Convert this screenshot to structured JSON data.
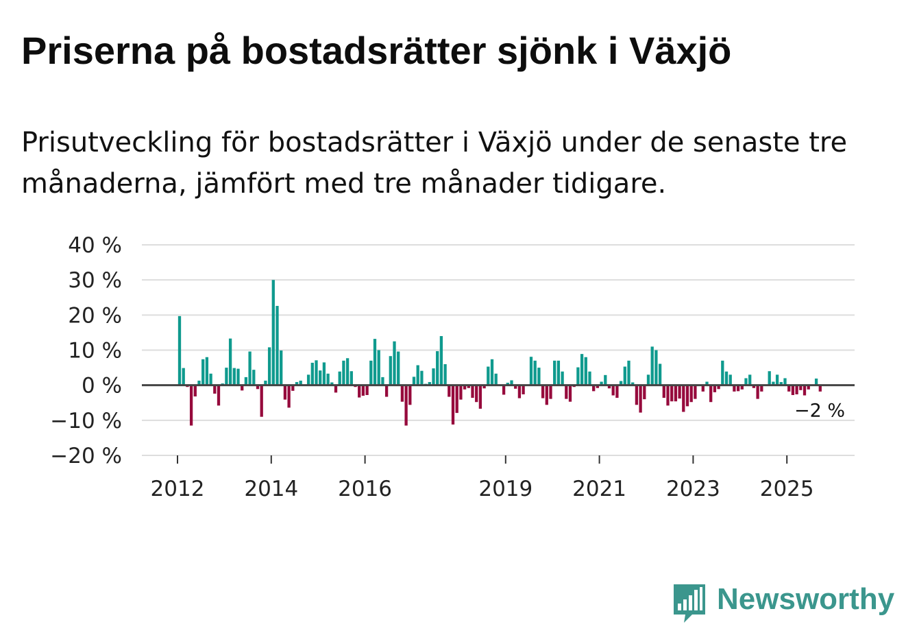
{
  "header": {
    "title": "Priserna på bostadsrätter sjönk i Växjö",
    "subtitle": "Prisutveckling för bostadsrätter i Växjö under de senaste tre månaderna, jämfört med tre månader tidigare."
  },
  "logo": {
    "text": "Newsworthy",
    "icon": "bar-chart-speech-icon",
    "color": "#3b968d"
  },
  "chart_data": {
    "type": "bar",
    "title": "Priserna på bostadsrätter sjönk i Växjö",
    "xlabel": "",
    "ylabel": "",
    "ylim": [
      -20,
      40
    ],
    "grid": true,
    "positive_color": "#0f9a8e",
    "negative_color": "#960a3c",
    "y_ticks": [
      {
        "value": 40,
        "label": "40 %"
      },
      {
        "value": 30,
        "label": "30 %"
      },
      {
        "value": 20,
        "label": "20 %"
      },
      {
        "value": 10,
        "label": "10 %"
      },
      {
        "value": 0,
        "label": "0 %"
      },
      {
        "value": -10,
        "label": "−10 %"
      },
      {
        "value": -20,
        "label": "−20 %"
      }
    ],
    "x_ticks": [
      {
        "index": 0,
        "label": "2012"
      },
      {
        "index": 24,
        "label": "2014"
      },
      {
        "index": 48,
        "label": "2016"
      },
      {
        "index": 84,
        "label": "2019"
      },
      {
        "index": 108,
        "label": "2021"
      },
      {
        "index": 132,
        "label": "2023"
      },
      {
        "index": 156,
        "label": "2025"
      }
    ],
    "start": "2012-01",
    "values": [
      19.7,
      4.9,
      -0.5,
      -11.5,
      -3.2,
      1.3,
      7.4,
      8.0,
      3.3,
      -2.4,
      -5.8,
      0.5,
      5.0,
      13.3,
      4.9,
      4.7,
      -1.5,
      2.3,
      9.6,
      4.4,
      -1.1,
      -9.0,
      1.3,
      10.8,
      30.0,
      22.6,
      9.9,
      -4.1,
      -6.4,
      -1.6,
      0.9,
      1.3,
      0.0,
      3.0,
      6.4,
      7.1,
      4.2,
      6.5,
      3.3,
      0.8,
      -2.1,
      3.9,
      7.0,
      7.7,
      4.0,
      -0.5,
      -3.5,
      -3.0,
      -2.8,
      7.0,
      13.2,
      10.0,
      2.3,
      -3.3,
      8.3,
      12.5,
      9.6,
      -4.7,
      -11.5,
      -5.6,
      2.4,
      5.7,
      4.1,
      0.4,
      0.9,
      4.8,
      9.7,
      14.0,
      6.0,
      -3.3,
      -11.2,
      -7.9,
      -4.1,
      -1.2,
      -0.8,
      -3.6,
      -4.8,
      -6.7,
      -0.9,
      5.3,
      7.4,
      3.3,
      0.0,
      -2.7,
      0.7,
      1.4,
      -1.0,
      -3.7,
      -2.6,
      0.0,
      8.1,
      7.0,
      5.0,
      -3.7,
      -5.6,
      -3.9,
      7.0,
      7.0,
      3.9,
      -3.9,
      -4.7,
      -0.5,
      5.1,
      8.9,
      8.0,
      3.9,
      -1.7,
      -0.8,
      1.0,
      2.9,
      -0.9,
      -2.9,
      -3.6,
      1.2,
      5.3,
      7.0,
      0.8,
      -5.6,
      -7.8,
      -4.0,
      3.0,
      11.0,
      10.0,
      6.1,
      -3.6,
      -5.8,
      -4.6,
      -4.6,
      -3.8,
      -7.6,
      -6.0,
      -4.8,
      -3.9,
      0.0,
      -1.8,
      1.0,
      -4.8,
      -2.0,
      -1.1,
      7.0,
      3.9,
      3.0,
      -1.8,
      -1.7,
      -1.2,
      2.0,
      3.0,
      -0.8,
      -3.9,
      -1.8,
      0.0,
      4.0,
      1.0,
      3.0,
      0.9,
      2.0,
      -1.8,
      -2.8,
      -2.6,
      -1.4,
      -2.9,
      -1.2,
      0.0,
      1.9,
      -1.8
    ],
    "last_label": "−2 %"
  }
}
